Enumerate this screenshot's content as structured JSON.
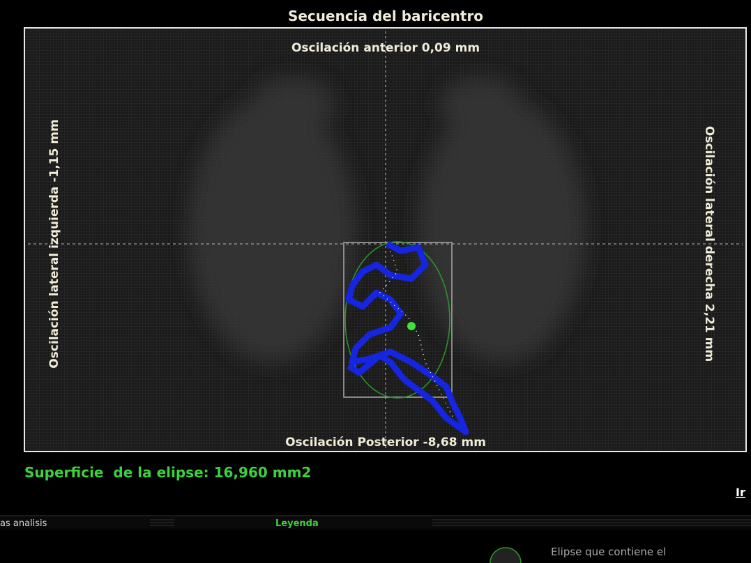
{
  "panel": {
    "title": "Secuencia del baricentro",
    "anterior": "Oscilación anterior 0,09 mm",
    "posterior": "Oscilación Posterior -8,68 mm",
    "left": "Oscilación lateral izquierda -1,15 mm",
    "right": "Oscilación lateral derecha 2,21 mm"
  },
  "surface": "Superficie  de la elipse: 16,960 mm2",
  "side_label": "Ir",
  "tabs": [
    "as analisis",
    "Leyenda"
  ],
  "legend": {
    "ellipse": "Elipse que contiene el"
  }
}
